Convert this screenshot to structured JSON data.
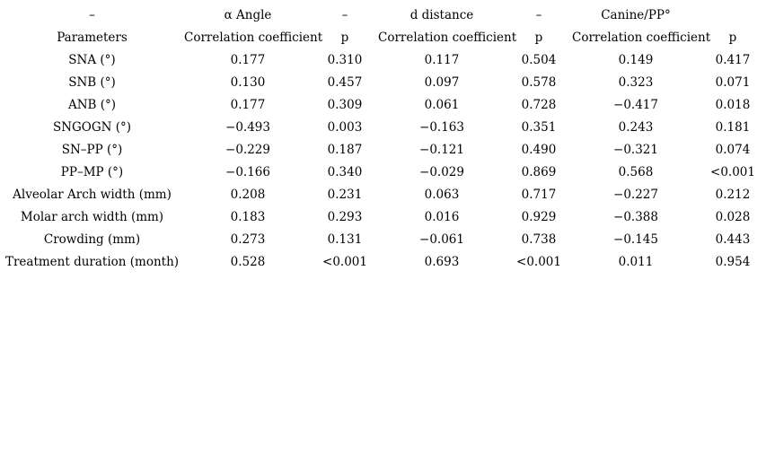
{
  "page": {
    "background_color": "#ffffff",
    "text_color": "#000000"
  },
  "table": {
    "group_header": [
      "–",
      "α Angle",
      "–",
      "d distance",
      "–",
      "Canine/PP°",
      ""
    ],
    "column_header": [
      "Parameters",
      "Correlation coefficient",
      "p",
      "Correlation coefficient",
      "p",
      "Correlation coefficient",
      "p"
    ],
    "rows": [
      {
        "cells": [
          "SNA (°)",
          "0.177",
          "0.310",
          "0.117",
          "0.504",
          "0.149",
          "0.417"
        ]
      },
      {
        "cells": [
          "SNB (°)",
          "0.130",
          "0.457",
          "0.097",
          "0.578",
          "0.323",
          "0.071"
        ]
      },
      {
        "cells": [
          "ANB (°)",
          "0.177",
          "0.309",
          "0.061",
          "0.728",
          "−0.417",
          "0.018"
        ]
      },
      {
        "cells": [
          "SNGOGN (°)",
          "−0.493",
          "0.003",
          "−0.163",
          "0.351",
          "0.243",
          "0.181"
        ]
      },
      {
        "cells": [
          "SN–PP (°)",
          "−0.229",
          "0.187",
          "−0.121",
          "0.490",
          "−0.321",
          "0.074"
        ]
      },
      {
        "cells": [
          "PP–MP (°)",
          "−0.166",
          "0.340",
          "−0.029",
          "0.869",
          "0.568",
          "<0.001"
        ]
      },
      {
        "cells": [
          "Alveolar Arch width (mm)",
          "0.208",
          "0.231",
          "0.063",
          "0.717",
          "−0.227",
          "0.212"
        ]
      },
      {
        "cells": [
          "Molar arch width (mm)",
          "0.183",
          "0.293",
          "0.016",
          "0.929",
          "−0.388",
          "0.028"
        ]
      },
      {
        "cells": [
          "Crowding (mm)",
          "0.273",
          "0.131",
          "−0.061",
          "0.738",
          "−0.145",
          "0.443"
        ]
      },
      {
        "cells": [
          "Treatment duration (month)",
          "0.528",
          "<0.001",
          "0.693",
          "<0.001",
          "0.011",
          "0.954"
        ]
      }
    ]
  }
}
